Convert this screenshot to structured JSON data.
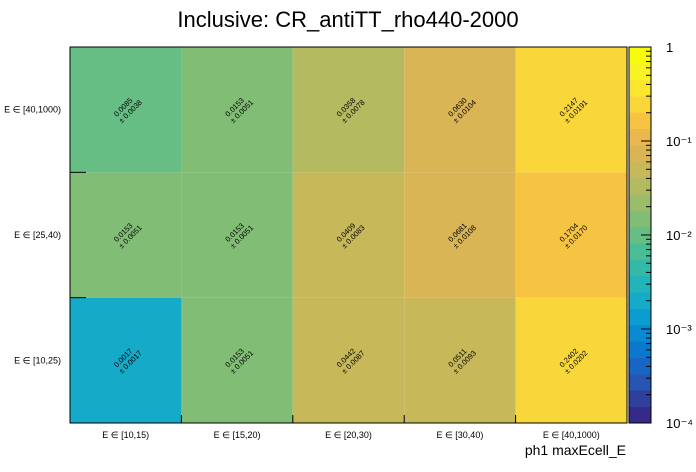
{
  "chart_data": {
    "type": "heatmap",
    "title": "Inclusive: CR_antiTT_rho440-2000",
    "xlabel": "ph1 maxEcell_E",
    "ylabel": "",
    "x_categories": [
      "E ∈ [10,15)",
      "E ∈ [15,20)",
      "E ∈ [20,30)",
      "E ∈ [30,40)",
      "E ∈ [40,1000)"
    ],
    "y_categories": [
      "E ∈ [10,25)",
      "E ∈ [25,40)",
      "E ∈ [40,1000)"
    ],
    "z_scale": "log",
    "z_range": [
      0.0001,
      1
    ],
    "z_ticks": [
      {
        "value": 1,
        "label": "1"
      },
      {
        "value": 0.1,
        "label": "10⁻¹"
      },
      {
        "value": 0.01,
        "label": "10⁻²"
      },
      {
        "value": 0.001,
        "label": "10⁻³"
      },
      {
        "value": 0.0001,
        "label": "10⁻⁴"
      }
    ],
    "values": [
      [
        0.0017,
        0.0153,
        0.0442,
        0.0511,
        0.2402
      ],
      [
        0.0153,
        0.0153,
        0.0409,
        0.0681,
        0.1704
      ],
      [
        0.0085,
        0.0153,
        0.0358,
        0.063,
        0.2147
      ]
    ],
    "values_text": [
      [
        "0.0017",
        "0.0153",
        "0.0442",
        "0.0511",
        "0.2402"
      ],
      [
        "0.0153",
        "0.0153",
        "0.0409",
        "0.0681",
        "0.1704"
      ],
      [
        "0.0085",
        "0.0153",
        "0.0358",
        "0.0630",
        "0.2147"
      ]
    ],
    "errors_text": [
      [
        "± 0.0017",
        "± 0.0051",
        "± 0.0087",
        "± 0.0093",
        "± 0.0202"
      ],
      [
        "± 0.0051",
        "± 0.0051",
        "± 0.0083",
        "± 0.0108",
        "± 0.0170"
      ],
      [
        "± 0.0038",
        "± 0.0051",
        "± 0.0078",
        "± 0.0104",
        "± 0.0191"
      ]
    ],
    "palette": [
      "#352a87",
      "#2e3f9c",
      "#2656b1",
      "#1766c4",
      "#0b78d0",
      "#0a8ad0",
      "#0b9dd0",
      "#14aac8",
      "#22b4b8",
      "#33b9a6",
      "#4abd94",
      "#66be84",
      "#82bd76",
      "#9bbc69",
      "#b3ba60",
      "#c7b85a",
      "#dab556",
      "#ebb84f",
      "#f6c442",
      "#f9d73a",
      "#fae62f",
      "#faf324",
      "#f9fb0e"
    ],
    "grid": false,
    "legend": "color palette on right"
  }
}
